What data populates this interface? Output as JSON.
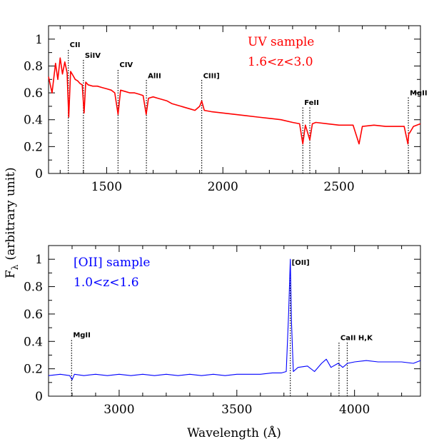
{
  "figure": {
    "ylabel": "F",
    "ylabel_sub": "λ",
    "ylabel_unit": "(arbitrary unit)",
    "xlabel": "Wavelength (Å)"
  },
  "chart_data": [
    {
      "type": "line",
      "name": "top-panel",
      "title": "",
      "color": "#ff0000",
      "annotations": [
        "UV sample",
        "1.6<z<3.0"
      ],
      "xlim": [
        1250,
        2850
      ],
      "ylim": [
        0,
        1.1
      ],
      "xticks": [
        1500,
        2000,
        2500
      ],
      "yticks": [
        0,
        0.2,
        0.4,
        0.6,
        0.8,
        1
      ],
      "ytick_labels": [
        "0",
        "0.2",
        "0.4",
        "0.6",
        "0.8",
        "1"
      ],
      "series": [
        {
          "x": [
            1250,
            1265,
            1280,
            1290,
            1300,
            1310,
            1320,
            1330,
            1337,
            1345,
            1355,
            1365,
            1375,
            1385,
            1395,
            1403,
            1410,
            1420,
            1440,
            1460,
            1480,
            1500,
            1520,
            1535,
            1549,
            1560,
            1580,
            1600,
            1620,
            1640,
            1657,
            1670,
            1680,
            1700,
            1720,
            1740,
            1760,
            1780,
            1800,
            1820,
            1840,
            1860,
            1880,
            1900,
            1909,
            1920,
            1950,
            2000,
            2050,
            2100,
            2150,
            2200,
            2250,
            2300,
            2330,
            2344,
            2355,
            2374,
            2385,
            2400,
            2450,
            2500,
            2560,
            2586,
            2600,
            2650,
            2700,
            2750,
            2780,
            2796,
            2800,
            2803,
            2820,
            2850
          ],
          "y": [
            0.72,
            0.6,
            0.82,
            0.7,
            0.86,
            0.74,
            0.83,
            0.75,
            0.42,
            0.76,
            0.73,
            0.7,
            0.69,
            0.67,
            0.66,
            0.45,
            0.68,
            0.66,
            0.65,
            0.65,
            0.64,
            0.63,
            0.62,
            0.6,
            0.44,
            0.62,
            0.61,
            0.6,
            0.6,
            0.59,
            0.58,
            0.44,
            0.56,
            0.57,
            0.56,
            0.55,
            0.54,
            0.52,
            0.51,
            0.5,
            0.49,
            0.48,
            0.47,
            0.5,
            0.54,
            0.47,
            0.46,
            0.45,
            0.44,
            0.43,
            0.42,
            0.41,
            0.4,
            0.38,
            0.37,
            0.22,
            0.36,
            0.25,
            0.37,
            0.38,
            0.37,
            0.36,
            0.36,
            0.22,
            0.35,
            0.36,
            0.35,
            0.35,
            0.35,
            0.22,
            0.3,
            0.3,
            0.35,
            0.37
          ]
        }
      ],
      "lines": [
        {
          "label": "CII",
          "wave": 1335,
          "ymax": 0.93
        },
        {
          "label": "SiIV",
          "wave": 1400,
          "ymax": 0.85
        },
        {
          "label": "CIV",
          "wave": 1549,
          "ymax": 0.78
        },
        {
          "label": "AlII",
          "wave": 1671,
          "ymax": 0.7
        },
        {
          "label": "CIII]",
          "wave": 1909,
          "ymax": 0.7
        },
        {
          "label": "FeII",
          "wave": 2344,
          "ymax": 0.5
        },
        {
          "label": "FeII",
          "wave": 2374,
          "ymax": 0.5
        },
        {
          "label": "MgII",
          "wave": 2798,
          "ymax": 0.57
        }
      ],
      "line_label_text": [
        "CII",
        "SiIV",
        "CIV",
        "AlII",
        "CIII]",
        "FeII",
        "MgII"
      ]
    },
    {
      "type": "line",
      "name": "bottom-panel",
      "title": "",
      "color": "#0000ff",
      "annotations": [
        "[OII] sample",
        "1.0<z<1.6"
      ],
      "xlim": [
        2700,
        4280
      ],
      "ylim": [
        0,
        1.1
      ],
      "xticks": [
        3000,
        3500,
        4000
      ],
      "yticks": [
        0,
        0.2,
        0.4,
        0.6,
        0.8,
        1
      ],
      "ytick_labels": [
        "0",
        "0.2",
        "0.4",
        "0.6",
        "0.8",
        "1"
      ],
      "series": [
        {
          "x": [
            2700,
            2750,
            2790,
            2800,
            2810,
            2850,
            2900,
            2950,
            3000,
            3050,
            3100,
            3150,
            3200,
            3250,
            3300,
            3350,
            3400,
            3450,
            3500,
            3550,
            3600,
            3650,
            3690,
            3710,
            3720,
            3727,
            3732,
            3740,
            3760,
            3800,
            3830,
            3860,
            3880,
            3900,
            3930,
            3950,
            3970,
            4000,
            4050,
            4100,
            4150,
            4200,
            4250,
            4280
          ],
          "y": [
            0.15,
            0.16,
            0.15,
            0.12,
            0.16,
            0.15,
            0.16,
            0.15,
            0.16,
            0.15,
            0.16,
            0.15,
            0.16,
            0.15,
            0.16,
            0.15,
            0.16,
            0.15,
            0.16,
            0.16,
            0.16,
            0.17,
            0.17,
            0.18,
            0.6,
            1.0,
            0.55,
            0.18,
            0.21,
            0.22,
            0.18,
            0.24,
            0.27,
            0.21,
            0.24,
            0.21,
            0.24,
            0.25,
            0.26,
            0.25,
            0.25,
            0.25,
            0.24,
            0.26
          ]
        }
      ],
      "lines": [
        {
          "label": "MgII",
          "wave": 2798,
          "ymax": 0.42
        },
        {
          "label": "[OII]",
          "wave": 3727,
          "ymax": 0.95
        },
        {
          "label": "CaII H,K",
          "wave": 3934,
          "ymax": 0.4
        },
        {
          "label": "CaII H,K",
          "wave": 3969,
          "ymax": 0.4
        }
      ],
      "line_label_text": [
        "MgII",
        "[OII]",
        "CaII H,K"
      ]
    }
  ]
}
